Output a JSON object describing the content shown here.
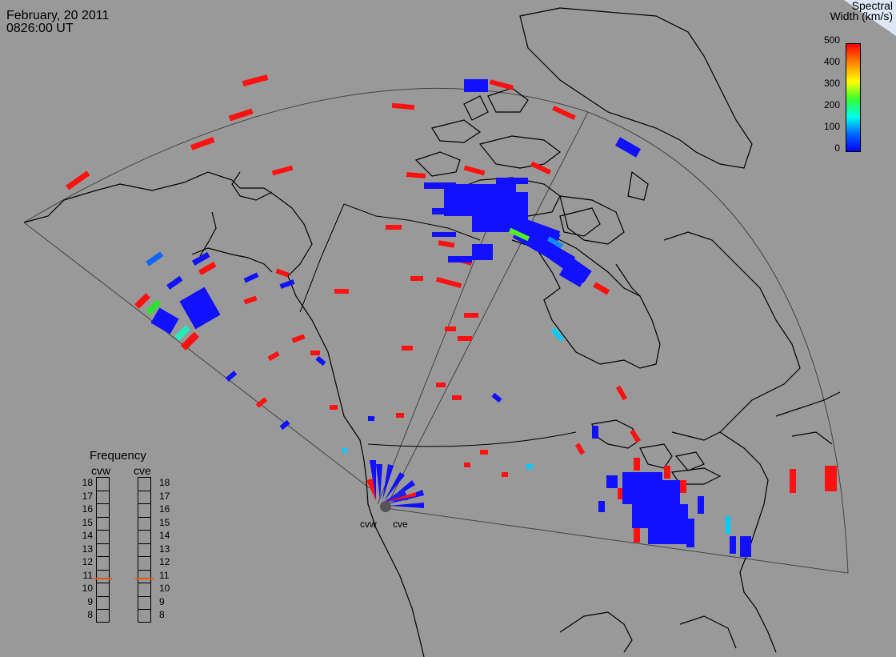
{
  "header": {
    "date": "February, 20 2011",
    "time": "0826:00 UT"
  },
  "colorbar": {
    "title_line1": "Spectral",
    "title_line2": "Width (km/s)",
    "ticks": [
      "500",
      "400",
      "300",
      "200",
      "100",
      "0"
    ],
    "gradient": [
      "#ff0000",
      "#ff8800",
      "#ffff00",
      "#33ff33",
      "#00ffee",
      "#0066ff",
      "#0000ff"
    ]
  },
  "frequency": {
    "title": "Frequency",
    "columns": [
      "cvw",
      "cve"
    ],
    "ticks": [
      "18",
      "17",
      "16",
      "15",
      "14",
      "13",
      "12",
      "11",
      "10",
      "9",
      "8"
    ],
    "current_mhz": {
      "cvw": 11,
      "cve": 11
    }
  },
  "stations": [
    "cvw",
    "cve"
  ],
  "colors": {
    "background": "#999999",
    "coast": "#000000",
    "low": "#1111ff",
    "high": "#ff1111",
    "indicator": "#ee5511"
  }
}
